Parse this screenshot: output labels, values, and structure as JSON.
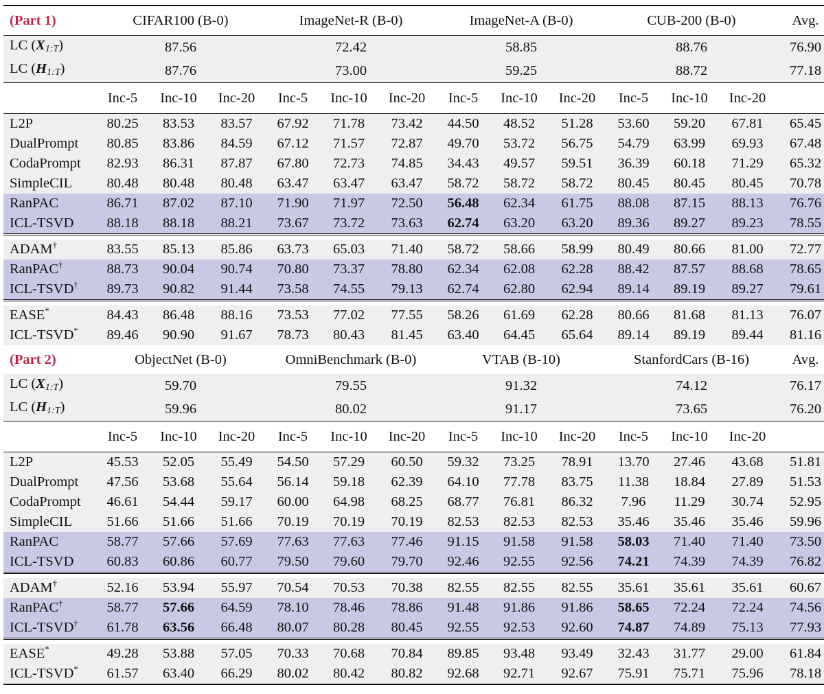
{
  "parts": [
    {
      "label": "(Part 1)",
      "datasets": [
        "CIFAR100 (B-0)",
        "ImageNet-R (B-0)",
        "ImageNet-A (B-0)",
        "CUB-200 (B-0)"
      ],
      "avg_label": "Avg.",
      "lc_rows": [
        {
          "name": "LC (X1:T)",
          "values": [
            "87.56",
            "72.42",
            "58.85",
            "88.76"
          ],
          "avg": "76.90"
        },
        {
          "name": "LC (H1:T)",
          "values": [
            "87.76",
            "73.00",
            "59.25",
            "88.72"
          ],
          "avg": "77.18"
        }
      ],
      "inc_labels": [
        "Inc-5",
        "Inc-10",
        "Inc-20",
        "Inc-5",
        "Inc-10",
        "Inc-20",
        "Inc-5",
        "Inc-10",
        "Inc-20",
        "Inc-5",
        "Inc-10",
        "Inc-20"
      ],
      "groups": [
        [
          {
            "name": "L2P",
            "values": [
              "80.25",
              "83.53",
              "83.57",
              "67.92",
              "71.78",
              "73.42",
              "44.50",
              "48.52",
              "51.28",
              "53.60",
              "59.20",
              "67.81",
              "65.45"
            ]
          },
          {
            "name": "DualPrompt",
            "values": [
              "80.85",
              "83.86",
              "84.59",
              "67.12",
              "71.57",
              "72.87",
              "49.70",
              "53.72",
              "56.75",
              "54.79",
              "63.99",
              "69.93",
              "67.48"
            ]
          },
          {
            "name": "CodaPrompt",
            "values": [
              "82.93",
              "86.31",
              "87.87",
              "67.80",
              "72.73",
              "74.85",
              "34.43",
              "49.57",
              "59.51",
              "36.39",
              "60.18",
              "71.29",
              "65.32"
            ]
          },
          {
            "name": "SimpleCIL",
            "values": [
              "80.48",
              "80.48",
              "80.48",
              "63.47",
              "63.47",
              "63.47",
              "58.72",
              "58.72",
              "58.72",
              "80.45",
              "80.45",
              "80.45",
              "70.78"
            ]
          },
          {
            "name": "RanPAC",
            "values": [
              "86.71",
              "87.02",
              "87.10",
              "71.90",
              "71.97",
              "72.50",
              "56.48",
              "62.34",
              "61.75",
              "88.08",
              "87.15",
              "88.13",
              "76.76"
            ],
            "hl": true,
            "bold": [
              6
            ]
          },
          {
            "name": "ICL-TSVD",
            "values": [
              "88.18",
              "88.18",
              "88.21",
              "73.67",
              "73.72",
              "73.63",
              "62.74",
              "63.20",
              "63.20",
              "89.36",
              "89.27",
              "89.23",
              "78.55"
            ],
            "hl": true,
            "bold": [
              6
            ]
          }
        ],
        [
          {
            "name": "ADAM",
            "sup": "†",
            "values": [
              "83.55",
              "85.13",
              "85.86",
              "63.73",
              "65.03",
              "71.40",
              "58.72",
              "58.66",
              "58.99",
              "80.49",
              "80.66",
              "81.00",
              "72.77"
            ]
          },
          {
            "name": "RanPAC",
            "sup": "†",
            "values": [
              "88.73",
              "90.04",
              "90.74",
              "70.80",
              "73.37",
              "78.80",
              "62.34",
              "62.08",
              "62.28",
              "88.42",
              "87.57",
              "88.68",
              "78.65"
            ],
            "hl": true
          },
          {
            "name": "ICL-TSVD",
            "sup": "†",
            "values": [
              "89.73",
              "90.82",
              "91.44",
              "73.58",
              "74.55",
              "79.13",
              "62.74",
              "62.80",
              "62.94",
              "89.14",
              "89.19",
              "89.27",
              "79.61"
            ],
            "hl": true
          }
        ],
        [
          {
            "name": "EASE",
            "sup": "*",
            "values": [
              "84.43",
              "86.48",
              "88.16",
              "73.53",
              "77.02",
              "77.55",
              "58.26",
              "61.69",
              "62.28",
              "80.66",
              "81.68",
              "81.13",
              "76.07"
            ]
          },
          {
            "name": "ICL-TSVD",
            "sup": "*",
            "values": [
              "89.46",
              "90.90",
              "91.67",
              "78.73",
              "80.43",
              "81.45",
              "63.40",
              "64.45",
              "65.64",
              "89.14",
              "89.19",
              "89.44",
              "81.16"
            ]
          }
        ]
      ]
    },
    {
      "label": "(Part 2)",
      "datasets": [
        "ObjectNet (B-0)",
        "OmniBenchmark (B-0)",
        "VTAB (B-10)",
        "StanfordCars (B-16)"
      ],
      "avg_label": "Avg.",
      "lc_rows": [
        {
          "name": "LC (X1:T)",
          "values": [
            "59.70",
            "79.55",
            "91.32",
            "74.12"
          ],
          "avg": "76.17"
        },
        {
          "name": "LC (H1:T)",
          "values": [
            "59.96",
            "80.02",
            "91.17",
            "73.65"
          ],
          "avg": "76.20"
        }
      ],
      "inc_labels": [
        "Inc-5",
        "Inc-10",
        "Inc-20",
        "Inc-5",
        "Inc-10",
        "Inc-20",
        "Inc-5",
        "Inc-10",
        "Inc-20",
        "Inc-5",
        "Inc-10",
        "Inc-20"
      ],
      "groups": [
        [
          {
            "name": "L2P",
            "values": [
              "45.53",
              "52.05",
              "55.49",
              "54.50",
              "57.29",
              "60.50",
              "59.32",
              "73.25",
              "78.91",
              "13.70",
              "27.46",
              "43.68",
              "51.81"
            ]
          },
          {
            "name": "DualPrompt",
            "values": [
              "47.56",
              "53.68",
              "55.64",
              "56.14",
              "59.18",
              "62.39",
              "64.10",
              "77.78",
              "83.75",
              "11.38",
              "18.84",
              "27.89",
              "51.53"
            ]
          },
          {
            "name": "CodaPrompt",
            "values": [
              "46.61",
              "54.44",
              "59.17",
              "60.00",
              "64.98",
              "68.25",
              "68.77",
              "76.81",
              "86.32",
              "7.96",
              "11.29",
              "30.74",
              "52.95"
            ]
          },
          {
            "name": "SimpleCIL",
            "values": [
              "51.66",
              "51.66",
              "51.66",
              "70.19",
              "70.19",
              "70.19",
              "82.53",
              "82.53",
              "82.53",
              "35.46",
              "35.46",
              "35.46",
              "59.96"
            ]
          },
          {
            "name": "RanPAC",
            "values": [
              "58.77",
              "57.66",
              "57.69",
              "77.63",
              "77.63",
              "77.46",
              "91.15",
              "91.58",
              "91.58",
              "58.03",
              "71.40",
              "71.40",
              "73.50"
            ],
            "hl": true,
            "bold": [
              9
            ]
          },
          {
            "name": "ICL-TSVD",
            "values": [
              "60.83",
              "60.86",
              "60.77",
              "79.50",
              "79.60",
              "79.70",
              "92.46",
              "92.55",
              "92.56",
              "74.21",
              "74.39",
              "74.39",
              "76.82"
            ],
            "hl": true,
            "bold": [
              9
            ]
          }
        ],
        [
          {
            "name": "ADAM",
            "sup": "†",
            "values": [
              "52.16",
              "53.94",
              "55.97",
              "70.54",
              "70.53",
              "70.38",
              "82.55",
              "82.55",
              "82.55",
              "35.61",
              "35.61",
              "35.61",
              "60.67"
            ]
          },
          {
            "name": "RanPAC",
            "sup": "†",
            "values": [
              "58.77",
              "57.66",
              "64.59",
              "78.10",
              "78.46",
              "78.86",
              "91.48",
              "91.86",
              "91.86",
              "58.65",
              "72.24",
              "72.24",
              "74.56"
            ],
            "hl": true,
            "bold": [
              1,
              9
            ]
          },
          {
            "name": "ICL-TSVD",
            "sup": "†",
            "values": [
              "61.78",
              "63.56",
              "66.48",
              "80.07",
              "80.28",
              "80.45",
              "92.55",
              "92.53",
              "92.60",
              "74.87",
              "74.89",
              "75.13",
              "77.93"
            ],
            "hl": true,
            "bold": [
              1,
              9
            ]
          }
        ],
        [
          {
            "name": "EASE",
            "sup": "*",
            "values": [
              "49.28",
              "53.88",
              "57.05",
              "70.33",
              "70.68",
              "70.84",
              "89.85",
              "93.48",
              "93.49",
              "32.43",
              "31.77",
              "29.00",
              "61.84"
            ]
          },
          {
            "name": "ICL-TSVD",
            "sup": "*",
            "values": [
              "61.57",
              "63.40",
              "66.29",
              "80.02",
              "80.42",
              "80.82",
              "92.68",
              "92.71",
              "92.67",
              "75.91",
              "75.71",
              "75.96",
              "78.18"
            ]
          }
        ]
      ]
    }
  ]
}
